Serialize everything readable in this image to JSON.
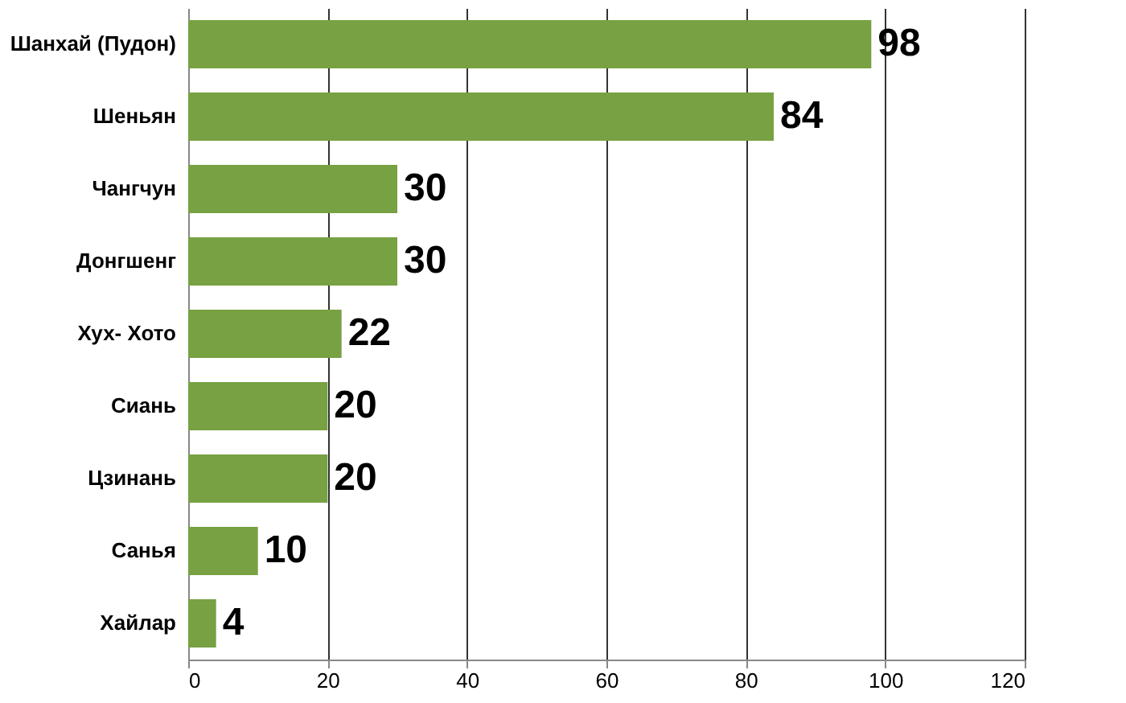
{
  "chart_data": {
    "type": "bar",
    "orientation": "horizontal",
    "categories": [
      "Шанхай (Пудон)",
      "Шеньян",
      "Чангчун",
      "Донгшенг",
      "Хух- Хото",
      "Сиань",
      "Цзинань",
      "Санья",
      "Хайлар"
    ],
    "values": [
      98,
      84,
      30,
      30,
      22,
      20,
      20,
      10,
      4
    ],
    "color": "#77a142",
    "xlim": [
      0,
      120
    ],
    "xticks": [
      0,
      20,
      40,
      60,
      80,
      100,
      120
    ],
    "grid": "x",
    "data_labels": true
  }
}
